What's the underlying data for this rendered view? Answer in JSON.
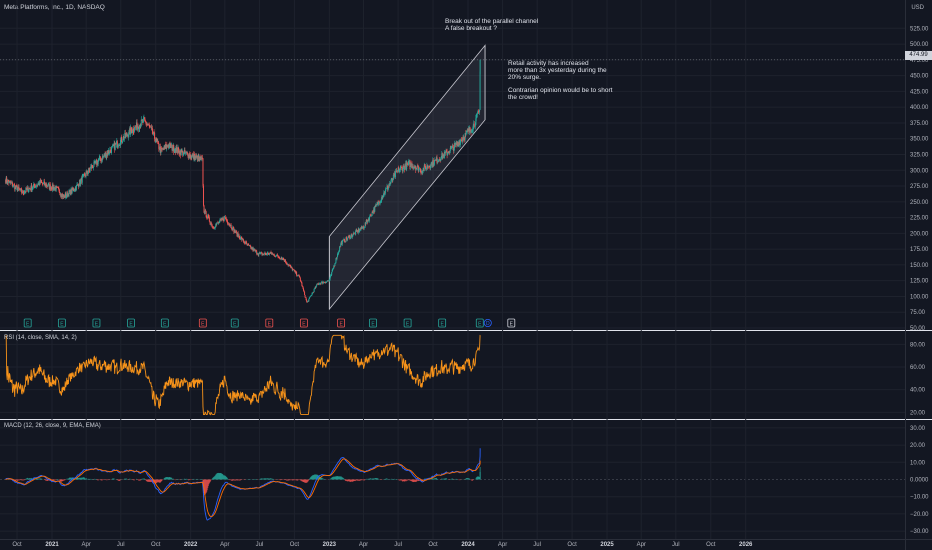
{
  "header": {
    "title": "Meta Platforms, Inc., 1D, NASDAQ",
    "currency": "USD",
    "last_price": "474.99"
  },
  "annotations": {
    "breakout": "Break out of the parallel channel\nA false breakout ?",
    "retail": "Retail activity has increased\nmore than 3x yesterday during the\n20% surge.",
    "contrarian": "Contrarian opinion would be to short\nthe crowd!"
  },
  "indicators": {
    "rsi_label": "RSI (14, close, SMA, 14, 2)",
    "macd_label": "MACD (12, 26, close, 9, EMA, EMA)"
  },
  "colors": {
    "background": "#131722",
    "grid": "#1e222d",
    "up": "#26a69a",
    "down": "#ef5350",
    "rsi": "#f7931a",
    "macd": "#2962ff",
    "signal": "#ff6d00",
    "channel": "#c8c8d0"
  },
  "chart_data": [
    {
      "type": "candlestick",
      "title": "Meta Platforms, Inc., 1D, NASDAQ",
      "y_ticks": [
        "525.00",
        "500.00",
        "475.00",
        "450.00",
        "425.00",
        "400.00",
        "375.00",
        "350.00",
        "325.00",
        "300.00",
        "275.00",
        "250.00",
        "225.00",
        "200.00",
        "175.00",
        "150.00",
        "125.00",
        "100.00",
        "75.00",
        "50.00"
      ],
      "ylim": [
        50,
        535
      ],
      "x_ticks": [
        "Oct",
        "2021",
        "Apr",
        "Jul",
        "Oct",
        "2022",
        "Apr",
        "Jul",
        "Oct",
        "2023",
        "Apr",
        "Jul",
        "Oct",
        "2024",
        "Apr",
        "Jul",
        "Oct",
        "2025",
        "Apr",
        "Jul",
        "Oct",
        "2026"
      ],
      "x_range": [
        "2020-09",
        "2026-03"
      ],
      "price_path": [
        [
          "2020-09-01",
          285
        ],
        [
          "2020-10-15",
          265
        ],
        [
          "2020-12-01",
          280
        ],
        [
          "2021-01-15",
          270
        ],
        [
          "2021-02-01",
          258
        ],
        [
          "2021-03-01",
          270
        ],
        [
          "2021-04-15",
          305
        ],
        [
          "2021-06-01",
          330
        ],
        [
          "2021-07-15",
          355
        ],
        [
          "2021-08-01",
          365
        ],
        [
          "2021-09-01",
          378
        ],
        [
          "2021-09-15",
          368
        ],
        [
          "2021-10-15",
          330
        ],
        [
          "2021-11-01",
          340
        ],
        [
          "2021-12-01",
          330
        ],
        [
          "2022-01-15",
          320
        ],
        [
          "2022-02-01",
          315
        ],
        [
          "2022-02-04",
          237
        ],
        [
          "2022-03-01",
          210
        ],
        [
          "2022-04-01",
          225
        ],
        [
          "2022-05-01",
          200
        ],
        [
          "2022-06-01",
          180
        ],
        [
          "2022-07-01",
          167
        ],
        [
          "2022-08-01",
          168
        ],
        [
          "2022-09-01",
          160
        ],
        [
          "2022-10-15",
          130
        ],
        [
          "2022-11-03",
          90
        ],
        [
          "2022-12-01",
          120
        ],
        [
          "2023-01-01",
          125
        ],
        [
          "2023-02-01",
          185
        ],
        [
          "2023-04-01",
          210
        ],
        [
          "2023-05-01",
          240
        ],
        [
          "2023-07-01",
          300
        ],
        [
          "2023-08-01",
          310
        ],
        [
          "2023-09-01",
          300
        ],
        [
          "2023-10-01",
          312
        ],
        [
          "2023-11-01",
          325
        ],
        [
          "2023-12-01",
          340
        ],
        [
          "2024-01-15",
          370
        ],
        [
          "2024-02-01",
          395
        ],
        [
          "2024-02-02",
          474.99
        ]
      ],
      "earnings_markers": [
        "E",
        "E",
        "E",
        "E",
        "E",
        "E",
        "E",
        "E",
        "E",
        "E",
        "E",
        "E",
        "E",
        "E",
        "E",
        "E"
      ],
      "dividend_marker": "D"
    },
    {
      "type": "line",
      "title": "RSI (14, close, SMA, 14, 2)",
      "y_ticks": [
        "80.00",
        "60.00",
        "40.00",
        "20.00"
      ],
      "ylim": [
        15,
        90
      ]
    },
    {
      "type": "line",
      "title": "MACD (12, 26, close, 9, EMA, EMA)",
      "y_ticks": [
        "30.00",
        "20.00",
        "10.00",
        "0.0000",
        "−10.00",
        "−20.00",
        "−30.00"
      ],
      "ylim": [
        -34,
        34
      ]
    }
  ]
}
